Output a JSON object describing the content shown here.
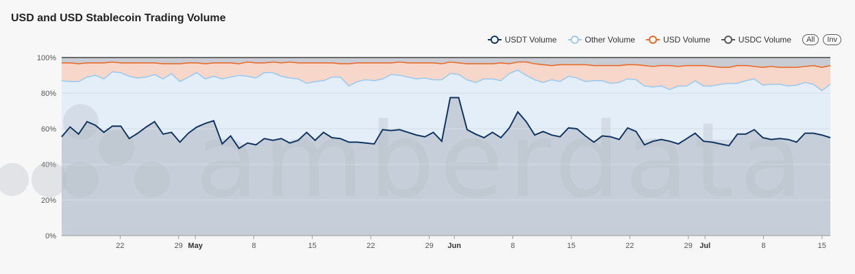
{
  "title": "USD and USD Stablecoin Trading Volume",
  "legend": {
    "items": [
      {
        "name": "USDT Volume",
        "color": "#0f3460"
      },
      {
        "name": "Other Volume",
        "color": "#9ec9ef"
      },
      {
        "name": "USD Volume",
        "color": "#e8692a"
      },
      {
        "name": "USDC Volume",
        "color": "#555555"
      }
    ],
    "all_label": "All",
    "inv_label": "Inv"
  },
  "colors": {
    "usdc_fill": "#c9cdd3",
    "usdt_fill": "#c5ced9",
    "other_fill": "#e3eef9",
    "usd_fill": "#f7d7c9",
    "gridline": "#d6dde6",
    "axis": "#444444",
    "tick_text": "#555555",
    "watermark": "#b8bec5"
  },
  "watermark": "amberdata",
  "chart_data": {
    "type": "area",
    "stacking": "percent",
    "x_start": "2024-04-15",
    "x_end": "2024-07-16",
    "y_ticks": [
      "0%",
      "20%",
      "40%",
      "60%",
      "80%",
      "100%"
    ],
    "ylim": [
      0,
      100
    ],
    "x_ticks": [
      {
        "date": "2024-04-22",
        "label": "22",
        "bold": false
      },
      {
        "date": "2024-04-29",
        "label": "29",
        "bold": false
      },
      {
        "date": "2024-05-01",
        "label": "May",
        "bold": true
      },
      {
        "date": "2024-05-08",
        "label": "8",
        "bold": false
      },
      {
        "date": "2024-05-15",
        "label": "15",
        "bold": false
      },
      {
        "date": "2024-05-22",
        "label": "22",
        "bold": false
      },
      {
        "date": "2024-05-29",
        "label": "29",
        "bold": false
      },
      {
        "date": "2024-06-01",
        "label": "Jun",
        "bold": true
      },
      {
        "date": "2024-06-08",
        "label": "8",
        "bold": false
      },
      {
        "date": "2024-06-15",
        "label": "15",
        "bold": false
      },
      {
        "date": "2024-06-22",
        "label": "22",
        "bold": false
      },
      {
        "date": "2024-06-29",
        "label": "29",
        "bold": false
      },
      {
        "date": "2024-07-01",
        "label": "Jul",
        "bold": true
      },
      {
        "date": "2024-07-08",
        "label": "8",
        "bold": false
      },
      {
        "date": "2024-07-15",
        "label": "15",
        "bold": false
      }
    ],
    "grid": true,
    "legend_position": "top-right",
    "cumulative_series": [
      {
        "name": "USDT Volume",
        "values": [
          55.5,
          61,
          57,
          64,
          62,
          58,
          61.5,
          61.5,
          54.5,
          57.5,
          61,
          64,
          57,
          58,
          52.5,
          57.5,
          61,
          63,
          64.5,
          51.5,
          56,
          49,
          52,
          51,
          54.5,
          53.5,
          54.5,
          52,
          53.5,
          58,
          53.5,
          58,
          55,
          54.5,
          52.5,
          52.5,
          52,
          51.5,
          59.5,
          59,
          59.5,
          58,
          56.5,
          55.5,
          58,
          53,
          77.5,
          77.5,
          59.5,
          57,
          55,
          58,
          55,
          60.5,
          69.5,
          64,
          56.5,
          58.5,
          56.5,
          55.5,
          60.5,
          60,
          56,
          52.5,
          56,
          55.5,
          54,
          60.5,
          58.5,
          51,
          53,
          54,
          53,
          51.5,
          54.5,
          57.5,
          53,
          52.5,
          51.5,
          50.5,
          57,
          57,
          59.5,
          55,
          54,
          54.5,
          54,
          52.5,
          57.5,
          57.5,
          56.5,
          55
        ]
      },
      {
        "name": "Other Volume",
        "values": [
          87,
          86.5,
          86.5,
          89,
          90,
          88,
          92,
          91.5,
          89.5,
          88.5,
          89,
          90.5,
          88,
          91,
          86.5,
          89,
          91.5,
          88,
          89.5,
          88,
          89,
          90,
          89.5,
          88.5,
          91.5,
          91.5,
          89.5,
          88.5,
          88,
          85.5,
          86.5,
          87,
          89,
          89,
          84,
          86.5,
          87.5,
          87,
          88,
          90.5,
          90,
          89,
          88,
          88.5,
          87.5,
          87.5,
          91,
          90.5,
          87.5,
          86,
          88,
          88,
          87,
          91,
          93,
          90,
          87.5,
          86,
          87.5,
          86.5,
          89.5,
          88.5,
          86.5,
          87,
          87,
          85.5,
          86,
          88,
          87.5,
          84,
          83.5,
          84,
          82,
          84,
          84,
          87,
          84,
          84,
          85,
          85.5,
          85.5,
          87,
          88,
          84.5,
          85,
          85,
          84,
          84.5,
          86,
          85,
          81.5,
          85
        ]
      },
      {
        "name": "USD Volume",
        "values": [
          97,
          97,
          96.5,
          97,
          97,
          97,
          97.5,
          97,
          97,
          97,
          97,
          97,
          96.5,
          96.5,
          96.5,
          97,
          97,
          96.5,
          97,
          97,
          97,
          96.5,
          97.5,
          97,
          97,
          97.5,
          97,
          97.5,
          97,
          97,
          97,
          97,
          97,
          96.5,
          96.5,
          97,
          97,
          97,
          97,
          97,
          97.5,
          97,
          97,
          97,
          97,
          96.5,
          97.5,
          97,
          96.5,
          96.5,
          96.5,
          96.5,
          97,
          96.5,
          97.5,
          97.5,
          96.5,
          96,
          95.5,
          96,
          96,
          96,
          96,
          95.5,
          95.5,
          95.5,
          95.5,
          96,
          96,
          95.5,
          95,
          95.5,
          95.5,
          95,
          95.5,
          95.5,
          95.5,
          95,
          94.5,
          94.5,
          95.5,
          95.5,
          95,
          94.5,
          95,
          94.5,
          94.5,
          94.5,
          95,
          95.5,
          94.5,
          95.5
        ]
      },
      {
        "name": "USDC Volume",
        "values": [
          100
        ]
      }
    ]
  }
}
